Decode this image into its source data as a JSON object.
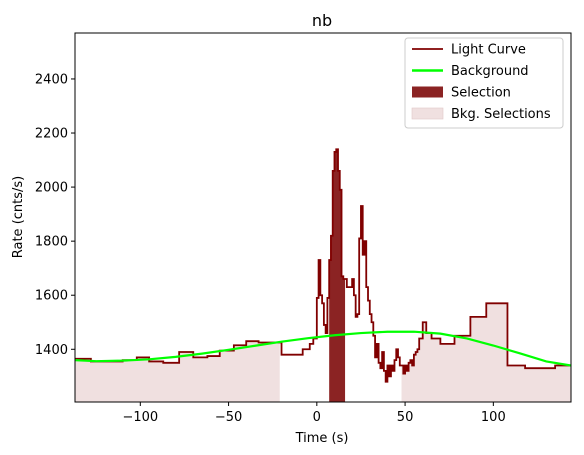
{
  "chart_data": {
    "type": "line",
    "title": "nb",
    "xlabel": "Time (s)",
    "ylabel": "Rate (cnts/s)",
    "xlim": [
      -137,
      144
    ],
    "ylim": [
      1205,
      2570
    ],
    "xticks": [
      -100,
      -50,
      0,
      50,
      100
    ],
    "yticks": [
      1400,
      1600,
      1800,
      2000,
      2200,
      2400
    ],
    "legend_position": "top-right",
    "legend": [
      {
        "label": "Light Curve",
        "kind": "line",
        "color": "#800000"
      },
      {
        "label": "Background",
        "kind": "line",
        "color": "#00ff00"
      },
      {
        "label": "Selection",
        "kind": "patch",
        "color": "#8b2323"
      },
      {
        "label": "Bkg. Selections",
        "kind": "patch",
        "color": "#f0e0e0"
      }
    ],
    "light_curve": {
      "color": "#800000",
      "x": [
        -137,
        -128,
        -122,
        -110,
        -102,
        -95,
        -87,
        -78,
        -70,
        -62,
        -55,
        -47,
        -40,
        -33,
        -28,
        -20,
        -12,
        -8,
        -4,
        -2,
        0,
        1,
        2,
        3,
        4,
        5,
        6,
        7,
        8,
        9,
        10,
        11,
        12,
        13,
        14,
        15,
        16,
        17,
        18,
        19,
        20,
        21,
        22,
        23,
        24,
        25,
        26,
        27,
        28,
        29,
        30,
        31,
        32,
        33,
        34,
        35,
        36,
        37,
        38,
        39,
        40,
        41,
        42,
        43,
        44,
        45,
        46,
        47,
        48,
        49,
        50,
        51,
        52,
        53,
        54,
        55,
        56,
        57,
        58,
        60,
        62,
        65,
        70,
        78,
        87,
        96,
        108,
        118,
        135,
        144
      ],
      "y": [
        1365,
        1355,
        1355,
        1360,
        1370,
        1355,
        1350,
        1390,
        1370,
        1375,
        1395,
        1415,
        1430,
        1425,
        1425,
        1380,
        1380,
        1400,
        1420,
        1440,
        1590,
        1730,
        1600,
        1570,
        1490,
        1460,
        1590,
        1730,
        1820,
        2060,
        2130,
        2140,
        2060,
        1990,
        1670,
        1660,
        1660,
        1630,
        1630,
        1630,
        1660,
        1600,
        1520,
        1530,
        1810,
        1930,
        1750,
        1800,
        1630,
        1580,
        1530,
        1500,
        1450,
        1370,
        1420,
        1350,
        1330,
        1390,
        1320,
        1280,
        1340,
        1300,
        1340,
        1320,
        1360,
        1400,
        1370,
        1340,
        1340,
        1310,
        1340,
        1320,
        1350,
        1360,
        1340,
        1380,
        1390,
        1400,
        1440,
        1500,
        1460,
        1440,
        1420,
        1450,
        1520,
        1570,
        1340,
        1330,
        1340,
        1340
      ]
    },
    "background": {
      "color": "#00ff00",
      "x": [
        -137,
        -125,
        -110,
        -95,
        -80,
        -65,
        -50,
        -35,
        -20,
        -5,
        10,
        25,
        40,
        55,
        70,
        85,
        100,
        115,
        130,
        144
      ],
      "y": [
        1360,
        1356,
        1358,
        1363,
        1372,
        1384,
        1398,
        1413,
        1428,
        1441,
        1452,
        1460,
        1465,
        1465,
        1458,
        1440,
        1414,
        1385,
        1355,
        1340
      ]
    },
    "selection": {
      "color": "#8b2323",
      "x_range": [
        7,
        16
      ]
    },
    "bkg_selections": {
      "color": "#f0e0e0",
      "ranges": [
        [
          -137,
          -21
        ],
        [
          48,
          144
        ]
      ]
    }
  }
}
